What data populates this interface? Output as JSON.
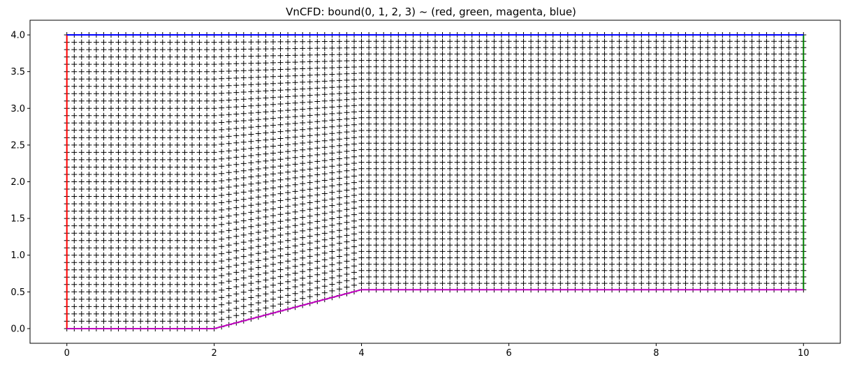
{
  "chart_data": {
    "type": "scatter",
    "title": "VnCFD: bound(0, 1, 2, 3) ~ (red, green, magenta, blue)",
    "xlabel": "",
    "ylabel": "",
    "xlim": [
      -0.5,
      10.5
    ],
    "ylim": [
      -0.2,
      4.2
    ],
    "xticks": [
      0,
      2,
      4,
      6,
      8,
      10
    ],
    "yticks": [
      0.0,
      0.5,
      1.0,
      1.5,
      2.0,
      2.5,
      3.0,
      3.5,
      4.0
    ],
    "grid": false,
    "marker": "+",
    "marker_color": "#000000",
    "mesh": {
      "x_min": 0,
      "x_max": 10,
      "y_top": 4.0,
      "nx": 101,
      "ny": 41,
      "ramp_start_x": 2,
      "ramp_end_x": 4,
      "lower_start_y": 0.0,
      "lower_end_y": 0.53
    },
    "boundaries": [
      {
        "id": 0,
        "color": "#ff0000",
        "name": "red",
        "points": [
          [
            0,
            0
          ],
          [
            0,
            4
          ]
        ]
      },
      {
        "id": 1,
        "color": "#008000",
        "name": "green",
        "points": [
          [
            10,
            0.53
          ],
          [
            10,
            4
          ]
        ]
      },
      {
        "id": 2,
        "color": "#bf00bf",
        "name": "magenta",
        "points": [
          [
            0,
            0
          ],
          [
            2,
            0
          ],
          [
            4,
            0.53
          ],
          [
            10,
            0.53
          ]
        ]
      },
      {
        "id": 3,
        "color": "#0000ff",
        "name": "blue",
        "points": [
          [
            0,
            4
          ],
          [
            10,
            4
          ]
        ]
      }
    ]
  }
}
